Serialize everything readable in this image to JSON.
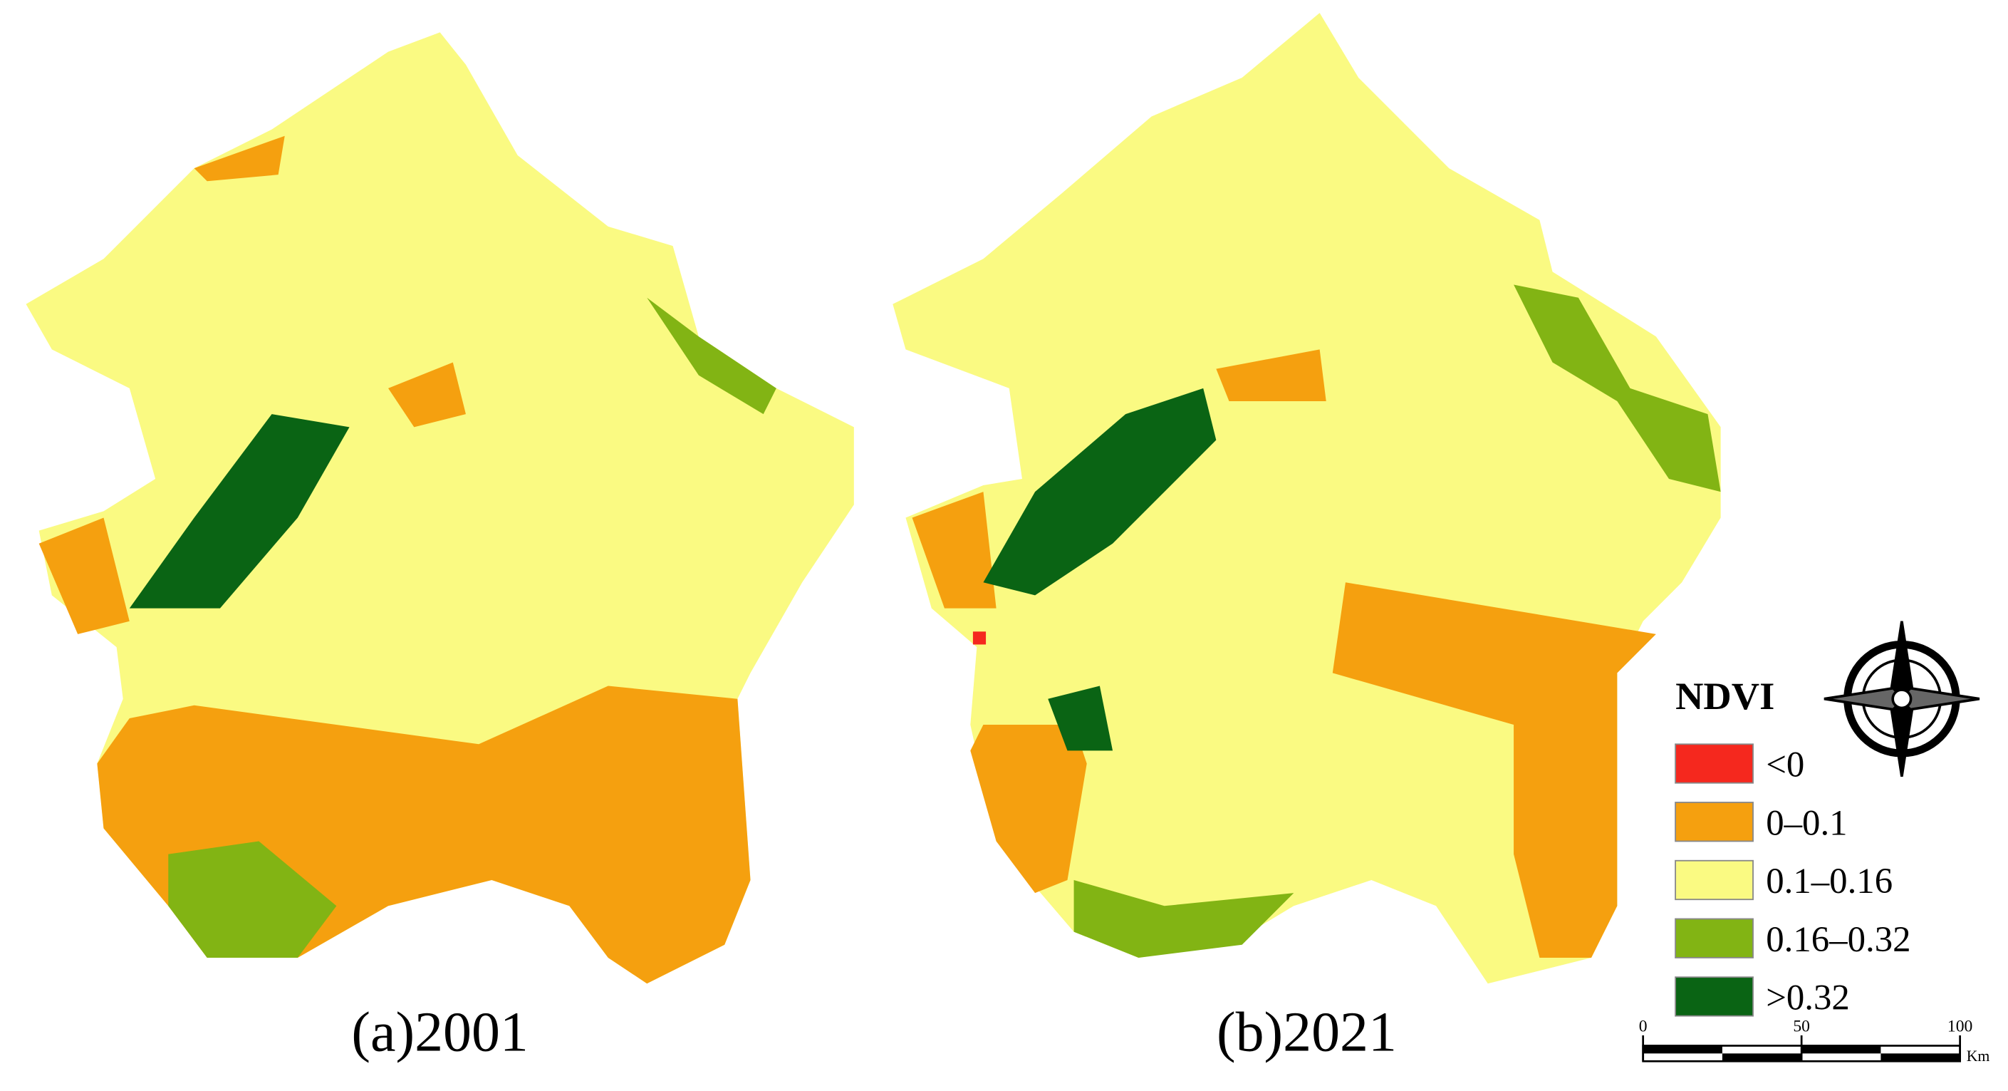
{
  "panels": [
    {
      "caption": "(a)2001"
    },
    {
      "caption": "(b)2021"
    }
  ],
  "legend": {
    "title": "NDVI",
    "items": [
      {
        "label": "<0",
        "color": "#f5281e"
      },
      {
        "label": "0–0.1",
        "color": "#f5a00f"
      },
      {
        "label": "0.1–0.16",
        "color": "#fafa82"
      },
      {
        "label": "0.16–0.32",
        "color": "#82b414"
      },
      {
        "label": ">0.32",
        "color": "#0a6414"
      }
    ]
  },
  "scale_bar": {
    "ticks": [
      0,
      50,
      100
    ],
    "unit": "Km"
  }
}
